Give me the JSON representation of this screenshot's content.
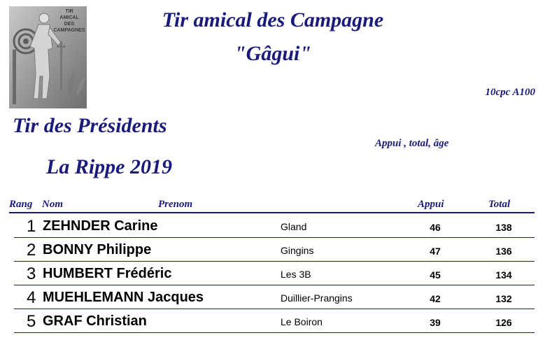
{
  "logo": {
    "text_lines": [
      "TIR",
      "AMICAL",
      "DES",
      "CAMPAGNES"
    ]
  },
  "header": {
    "title_line1": "Tir amical des Campagne",
    "title_line2": "\"Gâgui\"",
    "format": "10cpc A100",
    "event": "Tir des Présidents",
    "tiebreak_note": "Appui , total, âge",
    "place_year": "La Rippe 2019"
  },
  "table": {
    "columns": {
      "rank": "Rang",
      "name": "Nom",
      "firstname": "Prenom",
      "appui": "Appui",
      "total": "Total"
    },
    "rows": [
      {
        "rank": "1",
        "name": "ZEHNDER Carine",
        "club": "Gland",
        "appui": "46",
        "total": "138"
      },
      {
        "rank": "2",
        "name": "BONNY Philippe",
        "club": "Gingins",
        "appui": "47",
        "total": "136"
      },
      {
        "rank": "3",
        "name": "HUMBERT Frédéric",
        "club": "Les 3B",
        "appui": "45",
        "total": "134"
      },
      {
        "rank": "4",
        "name": "MUEHLEMANN Jacques",
        "club": "Duillier-Prangins",
        "appui": "42",
        "total": "132"
      },
      {
        "rank": "5",
        "name": "GRAF Christian",
        "club": "Le Boiron",
        "appui": "39",
        "total": "126"
      }
    ]
  }
}
